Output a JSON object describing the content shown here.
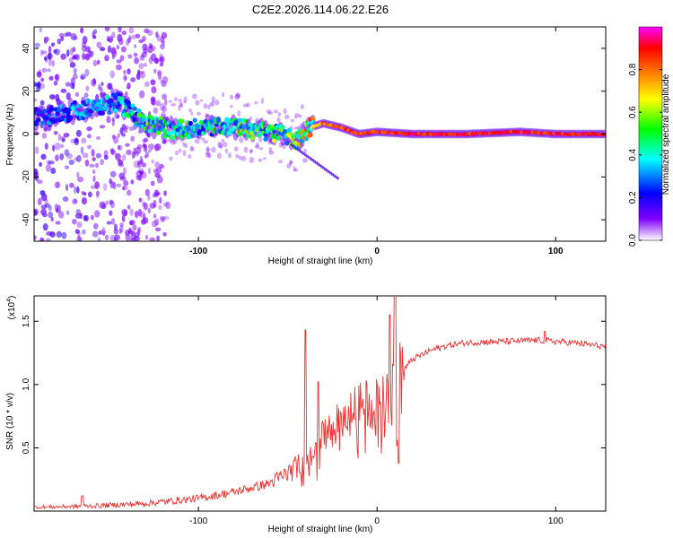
{
  "title": "C2E2.2026.114.06.22.E26",
  "chart_data": [
    {
      "type": "heatmap",
      "name": "spectrogram",
      "xlabel": "Height of straight line (km)",
      "ylabel": "Frequency (Hz)",
      "xlim": [
        -192,
        128
      ],
      "ylim": [
        -50,
        50
      ],
      "x_ticks": [
        -100,
        0,
        100
      ],
      "y_ticks": [
        -40,
        -20,
        0,
        20,
        40
      ],
      "colorbar": {
        "label": "Normalized spectral amplitude",
        "range": [
          0.0,
          1.0
        ],
        "ticks": [
          0.0,
          0.2,
          0.4,
          0.6,
          0.8
        ],
        "tick_labels": [
          "0.0",
          "0.2",
          "0.4",
          "0.6",
          "0.8"
        ],
        "colors": [
          "#ffffff",
          "#8000ff",
          "#0000ff",
          "#00ffff",
          "#00ff00",
          "#ffff00",
          "#ff8000",
          "#ff0000",
          "#ff00ff"
        ]
      },
      "ridge": {
        "x": [
          -190,
          -175,
          -160,
          -145,
          -130,
          -115,
          -100,
          -85,
          -70,
          -55,
          -45,
          -38,
          -30,
          -20,
          -10,
          0,
          20,
          50,
          80,
          100,
          128
        ],
        "freq": [
          8,
          10,
          12,
          15,
          5,
          2,
          3,
          4,
          2,
          0,
          -3,
          3,
          5,
          3,
          0,
          1,
          0,
          0,
          1,
          0,
          0
        ],
        "amplitude": [
          0.25,
          0.3,
          0.3,
          0.35,
          0.45,
          0.45,
          0.4,
          0.45,
          0.5,
          0.5,
          0.55,
          0.7,
          0.85,
          0.9,
          0.9,
          0.95,
          0.95,
          0.95,
          0.95,
          0.95,
          0.95
        ]
      }
    },
    {
      "type": "line",
      "name": "snr",
      "xlabel": "Height of straight line (km)",
      "ylabel": "SNR (10 * v/v)",
      "y_multiplier_label": "(x10",
      "y_multiplier_exp": "4",
      "y_multiplier_close": ")",
      "xlim": [
        -192,
        128
      ],
      "ylim": [
        0,
        1.7
      ],
      "x_ticks": [
        -100,
        0,
        100
      ],
      "y_ticks": [
        0.5,
        1.0,
        1.5
      ],
      "y_tick_labels": [
        "0.5",
        "1.0",
        "1.5"
      ],
      "color": "#ee3333",
      "envelope": {
        "x": [
          -192,
          -160,
          -130,
          -100,
          -80,
          -60,
          -50,
          -40,
          -35,
          -30,
          -25,
          -20,
          -10,
          0,
          5,
          10,
          15,
          20,
          30,
          40,
          50,
          70,
          90,
          110,
          128
        ],
        "y": [
          0.03,
          0.04,
          0.06,
          0.1,
          0.15,
          0.22,
          0.3,
          0.4,
          0.48,
          0.58,
          0.65,
          0.72,
          0.82,
          0.88,
          0.95,
          1.05,
          1.12,
          1.2,
          1.27,
          1.31,
          1.33,
          1.34,
          1.35,
          1.33,
          1.3
        ]
      },
      "spikes": [
        {
          "x": -165,
          "y": 0.12
        },
        {
          "x": -40,
          "y": 1.43
        },
        {
          "x": -33,
          "y": 1.02
        },
        {
          "x": 7,
          "y": 1.55
        },
        {
          "x": 10,
          "y": 1.7
        },
        {
          "x": 12,
          "y": 0.38
        },
        {
          "x": 94,
          "y": 1.42
        }
      ]
    }
  ]
}
